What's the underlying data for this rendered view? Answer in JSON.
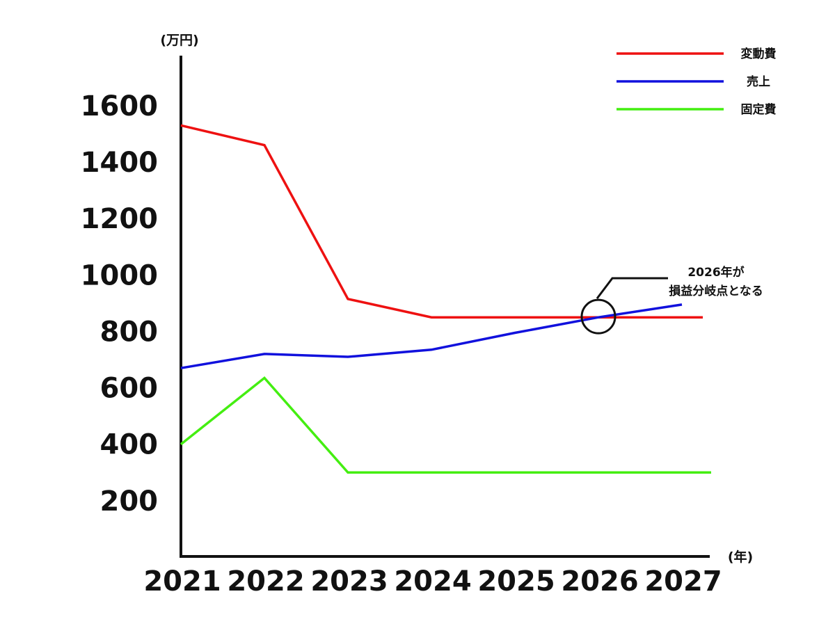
{
  "chart_data": {
    "type": "line",
    "title": "",
    "y_unit_label": "(万円)",
    "x_unit_label": "(年)",
    "categories": [
      "2021",
      "2022",
      "2023",
      "2024",
      "2025",
      "2026",
      "2027"
    ],
    "y_ticks": [
      200,
      400,
      600,
      800,
      1000,
      1200,
      1400,
      1600
    ],
    "ylim": [
      0,
      1750
    ],
    "grid": false,
    "legend_position": "top-right",
    "series": [
      {
        "name": "変動費",
        "color": "#ee1111",
        "values": [
          1530,
          1460,
          915,
          850,
          850,
          850,
          850
        ]
      },
      {
        "name": "売上",
        "color": "#1111dd",
        "values": [
          670,
          720,
          710,
          735,
          795,
          850,
          895
        ]
      },
      {
        "name": "固定費",
        "color": "#44ee11",
        "values": [
          400,
          635,
          300,
          300,
          300,
          300,
          300
        ]
      }
    ],
    "annotation": {
      "line1": "2026年が",
      "line2": "損益分岐点となる",
      "target_category": "2026",
      "target_value": 850
    }
  }
}
